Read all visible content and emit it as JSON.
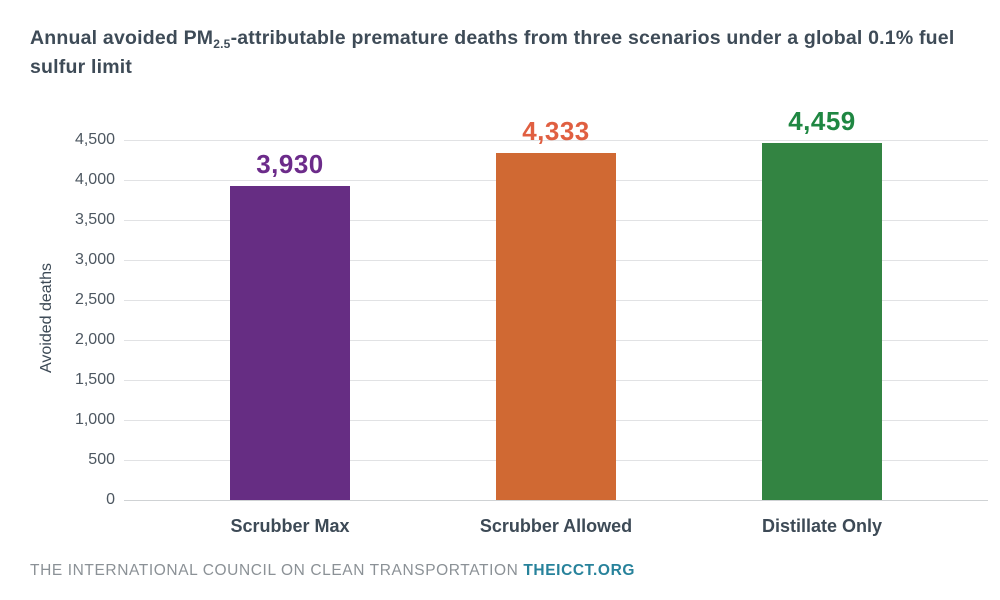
{
  "title": {
    "pre": "Annual avoided PM",
    "sub": "2.5",
    "post": "-attributable premature deaths from three scenarios under a global 0.1% fuel sulfur limit"
  },
  "footer": {
    "org_text": "THE INTERNATIONAL COUNCIL ON CLEAN TRANSPORTATION",
    "site_link": "THEICCT.ORG"
  },
  "colors": {
    "title_text": "#3e4b57",
    "axis_tick_text": "#4d5761",
    "category_text": "#3d4a56",
    "gridline": "#e1e2e4",
    "zero_line": "#cfd2d4",
    "footer_text": "#8b9196",
    "footer_link": "#27829b"
  },
  "chart_data": {
    "type": "bar",
    "title": "Annual avoided PM2.5-attributable premature deaths from three scenarios under a global 0.1% fuel sulfur limit",
    "categories": [
      "Scrubber Max",
      "Scrubber Allowed",
      "Distillate Only"
    ],
    "values": [
      3930,
      4333,
      4459
    ],
    "value_labels": [
      "3,930",
      "4,333",
      "4,459"
    ],
    "bar_colors": [
      "#662d83",
      "#d06933",
      "#338442"
    ],
    "value_label_colors": [
      "#6c2b8a",
      "#e05f41",
      "#1f8742"
    ],
    "xlabel": "",
    "ylabel": "Avoided deaths",
    "ylim": [
      0,
      4500
    ],
    "ytick_step": 500,
    "ytick_labels": [
      "0",
      "500",
      "1,000",
      "1,500",
      "2,000",
      "2,500",
      "3,000",
      "3,500",
      "4,000",
      "4,500"
    ],
    "grid": "horizontal",
    "legend": "none"
  }
}
